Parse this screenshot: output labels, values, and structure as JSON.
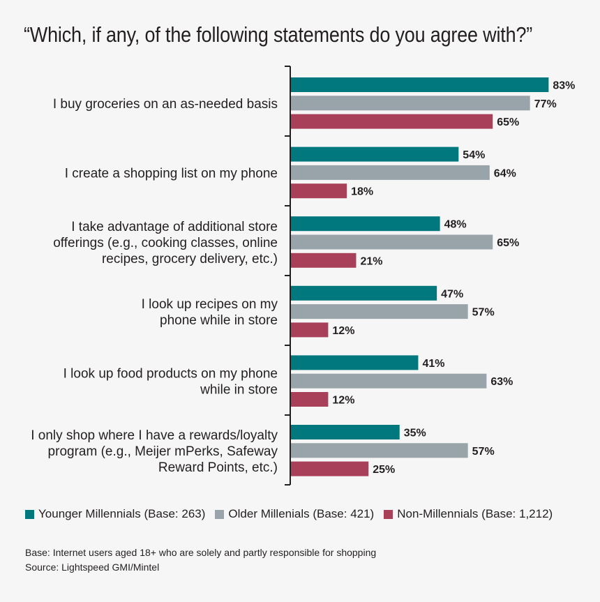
{
  "chart_data": {
    "type": "bar",
    "orientation": "horizontal",
    "title": "“Which, if any, of the following statements do you agree with?”",
    "categories": [
      [
        "I buy groceries on an as-needed basis"
      ],
      [
        "I create a shopping list on my phone"
      ],
      [
        "I take advantage of additional store",
        "offerings (e.g., cooking classes, online",
        "recipes, grocery delivery, etc.)"
      ],
      [
        "I look up recipes on my",
        "phone while in store"
      ],
      [
        "I look up food products on my phone",
        "while in store"
      ],
      [
        "I only shop where I have a rewards/loyalty",
        "program (e.g., Meijer mPerks, Safeway",
        "Reward Points, etc.)"
      ]
    ],
    "series": [
      {
        "name": "Younger Millennials (Base: 263)",
        "color": "#00787e",
        "values": [
          83,
          54,
          48,
          47,
          41,
          35
        ]
      },
      {
        "name": "Older Millenials (Base: 421)",
        "color": "#98a3aa",
        "values": [
          77,
          64,
          65,
          57,
          63,
          57
        ]
      },
      {
        "name": "Non-Millennials (Base: 1,212)",
        "color": "#a8405a",
        "values": [
          65,
          18,
          21,
          12,
          12,
          25
        ]
      }
    ],
    "value_suffix": "%",
    "xlim": [
      0,
      100
    ],
    "legend_position": "bottom"
  },
  "footnotes": {
    "base": "Base: Internet users aged 18+ who are solely and partly responsible for shopping",
    "source": "Source: Lightspeed GMI/Mintel"
  }
}
